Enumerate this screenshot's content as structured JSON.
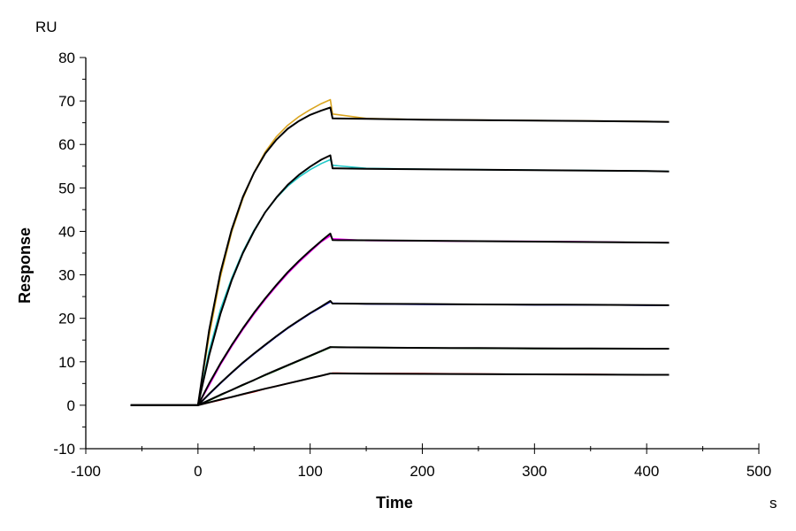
{
  "chart_data": {
    "type": "line",
    "title": "",
    "xlabel": "Time",
    "xunit": "s",
    "ylabel": "Response",
    "yunit": "RU",
    "xlim": [
      -100,
      500
    ],
    "ylim": [
      -10,
      80
    ],
    "xticks": [
      -100,
      0,
      100,
      200,
      300,
      400,
      500
    ],
    "yticks": [
      -10,
      0,
      10,
      20,
      30,
      40,
      50,
      60,
      70,
      80
    ],
    "grid": false,
    "legend": "none",
    "x": [
      -60,
      0,
      10,
      20,
      30,
      40,
      50,
      60,
      70,
      80,
      90,
      100,
      110,
      118,
      120,
      150,
      200,
      250,
      300,
      350,
      400,
      420
    ],
    "series": [
      {
        "color": "#DAA520",
        "kind": "data",
        "values": [
          0,
          0,
          16.0,
          29.5,
          39.8,
          47.5,
          53.6,
          58.3,
          61.8,
          64.4,
          66.4,
          68.0,
          69.4,
          70.3,
          67.0,
          66.0,
          65.7,
          65.6,
          65.5,
          65.4,
          65.3,
          65.2
        ]
      },
      {
        "color": "#000000",
        "kind": "fit",
        "values": [
          0,
          0,
          17.3,
          30.5,
          40.4,
          47.9,
          53.5,
          57.9,
          61.1,
          63.6,
          65.4,
          66.8,
          67.8,
          68.5,
          66.0,
          65.9,
          65.7,
          65.6,
          65.5,
          65.4,
          65.25,
          65.2
        ]
      },
      {
        "color": "#20C8C8",
        "kind": "data",
        "values": [
          0,
          0,
          12.5,
          22.0,
          29.2,
          35.3,
          40.3,
          44.4,
          47.7,
          50.4,
          52.5,
          54.2,
          55.6,
          56.5,
          55.2,
          54.5,
          54.3,
          54.2,
          54.1,
          54.0,
          53.9,
          53.8
        ]
      },
      {
        "color": "#000000",
        "kind": "fit",
        "values": [
          0,
          0,
          11.5,
          21.0,
          28.7,
          35.0,
          40.1,
          44.4,
          47.8,
          50.7,
          53.0,
          54.9,
          56.5,
          57.5,
          54.5,
          54.4,
          54.3,
          54.2,
          54.1,
          54.0,
          53.9,
          53.8
        ]
      },
      {
        "color": "#FF00FF",
        "kind": "data",
        "values": [
          0,
          0,
          4.6,
          9.3,
          13.5,
          17.4,
          21.0,
          24.3,
          27.4,
          30.3,
          32.9,
          35.3,
          37.6,
          39.0,
          38.3,
          37.9,
          37.8,
          37.7,
          37.7,
          37.6,
          37.4,
          37.4
        ]
      },
      {
        "color": "#000000",
        "kind": "fit",
        "values": [
          0,
          0,
          5.0,
          9.6,
          13.8,
          17.7,
          21.3,
          24.6,
          27.7,
          30.6,
          33.2,
          35.6,
          37.8,
          39.5,
          38.0,
          37.95,
          37.85,
          37.75,
          37.65,
          37.55,
          37.45,
          37.4
        ]
      },
      {
        "color": "#0000FF",
        "kind": "data",
        "values": [
          0,
          0,
          2.5,
          5.0,
          7.4,
          9.7,
          11.8,
          13.8,
          15.8,
          17.7,
          19.4,
          21.1,
          22.6,
          23.8,
          23.5,
          23.3,
          23.2,
          23.2,
          23.1,
          23.1,
          23.0,
          23.0
        ]
      },
      {
        "color": "#000000",
        "kind": "fit",
        "values": [
          0,
          0,
          2.6,
          5.1,
          7.5,
          9.8,
          11.9,
          13.9,
          15.9,
          17.8,
          19.5,
          21.2,
          22.7,
          24.0,
          23.4,
          23.35,
          23.3,
          23.2,
          23.15,
          23.1,
          23.05,
          23.0
        ]
      },
      {
        "color": "#006400",
        "kind": "data",
        "values": [
          0,
          0,
          1.1,
          2.3,
          3.5,
          4.6,
          5.8,
          6.9,
          8.0,
          9.1,
          10.2,
          11.3,
          12.4,
          13.3,
          13.4,
          13.3,
          13.2,
          13.1,
          13.0,
          13.0,
          13.0,
          13.0
        ]
      },
      {
        "color": "#000000",
        "kind": "fit",
        "values": [
          0,
          0,
          1.2,
          2.4,
          3.5,
          4.7,
          5.8,
          7.0,
          8.1,
          9.2,
          10.3,
          11.4,
          12.5,
          13.4,
          13.35,
          13.3,
          13.2,
          13.15,
          13.1,
          13.05,
          13.0,
          13.0
        ]
      },
      {
        "color": "#FF0000",
        "kind": "data",
        "values": [
          0,
          0,
          0.6,
          1.2,
          1.9,
          2.5,
          3.1,
          3.8,
          4.4,
          5.0,
          5.6,
          6.2,
          6.8,
          7.3,
          7.4,
          7.3,
          7.3,
          7.2,
          7.1,
          7.1,
          7.0,
          7.0
        ]
      },
      {
        "color": "#000000",
        "kind": "fit",
        "values": [
          0,
          0,
          0.65,
          1.3,
          1.9,
          2.55,
          3.2,
          3.8,
          4.4,
          5.0,
          5.6,
          6.2,
          6.8,
          7.3,
          7.3,
          7.25,
          7.2,
          7.15,
          7.1,
          7.05,
          7.0,
          7.0
        ]
      }
    ]
  }
}
